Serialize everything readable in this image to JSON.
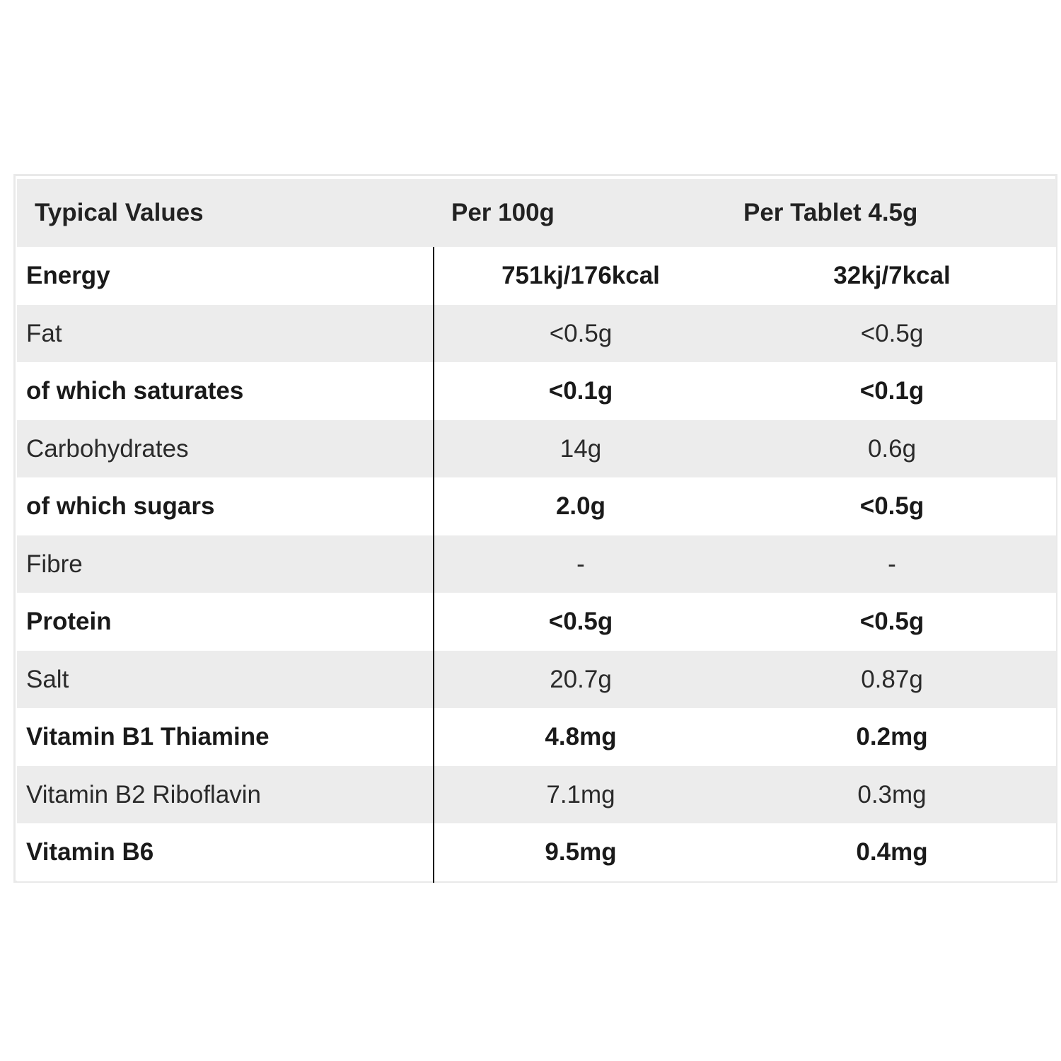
{
  "table": {
    "headers": {
      "typical": "Typical Values",
      "per100": "Per 100g",
      "perTablet": "Per Tablet 4.5g"
    },
    "rows": [
      {
        "label": "Energy",
        "per100": "751kj/176kcal",
        "perTablet": "32kj/7kcal",
        "bold": true
      },
      {
        "label": "Fat",
        "per100": "<0.5g",
        "perTablet": "<0.5g",
        "bold": false
      },
      {
        "label": "of which saturates",
        "per100": "<0.1g",
        "perTablet": "<0.1g",
        "bold": true
      },
      {
        "label": "Carbohydrates",
        "per100": "14g",
        "perTablet": "0.6g",
        "bold": false
      },
      {
        "label": "of which sugars",
        "per100": "2.0g",
        "perTablet": "<0.5g",
        "bold": true
      },
      {
        "label": "Fibre",
        "per100": "-",
        "perTablet": "-",
        "bold": false
      },
      {
        "label": "Protein",
        "per100": "<0.5g",
        "perTablet": "<0.5g",
        "bold": true
      },
      {
        "label": "Salt",
        "per100": "20.7g",
        "perTablet": "0.87g",
        "bold": false
      },
      {
        "label": "Vitamin B1 Thiamine",
        "per100": "4.8mg",
        "perTablet": "0.2mg",
        "bold": true
      },
      {
        "label": "Vitamin B2 Riboflavin",
        "per100": "7.1mg",
        "perTablet": "0.3mg",
        "bold": false
      },
      {
        "label": "Vitamin B6",
        "per100": "9.5mg",
        "perTablet": "0.4mg",
        "bold": true
      }
    ]
  },
  "colors": {
    "shade": "#ececec",
    "border": "#e9e9e9",
    "divider": "#111111",
    "text": "#1f1f1f"
  }
}
